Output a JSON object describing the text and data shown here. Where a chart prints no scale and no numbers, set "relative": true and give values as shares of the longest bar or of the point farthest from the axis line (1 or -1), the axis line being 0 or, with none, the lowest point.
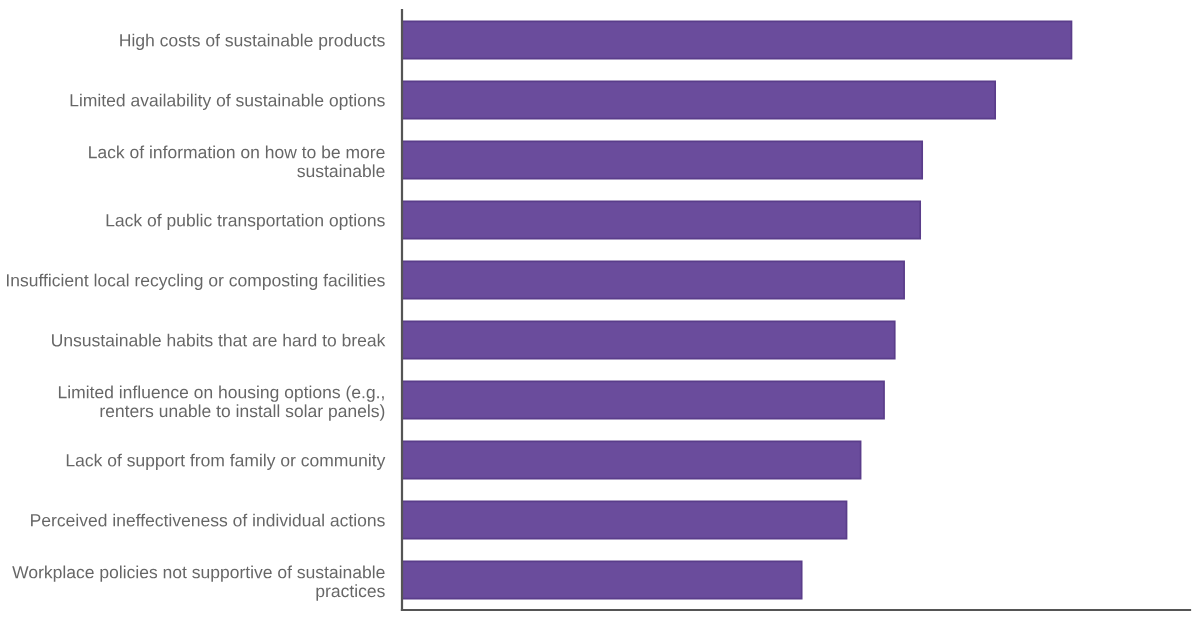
{
  "chart_data": {
    "type": "bar",
    "orientation": "horizontal",
    "relative": true,
    "color": "#6a4c9c",
    "categories": [
      "High costs of sustainable products",
      "Limited availability of sustainable options",
      "Lack of information on how to be more sustainable",
      "Lack of public transportation options",
      "Insufficient local recycling or composting facilities",
      "Unsustainable habits that are hard to break",
      "Limited influence on housing options (e.g., renters unable to install solar panels)",
      "Lack of support from family or community",
      "Perceived ineffectiveness of individual actions",
      "Workplace policies not supportive of sustainable practices"
    ],
    "values": [
      1,
      0.886,
      0.777,
      0.774,
      0.75,
      0.736,
      0.72,
      0.685,
      0.664,
      0.597
    ],
    "grid": false,
    "legend": false
  }
}
